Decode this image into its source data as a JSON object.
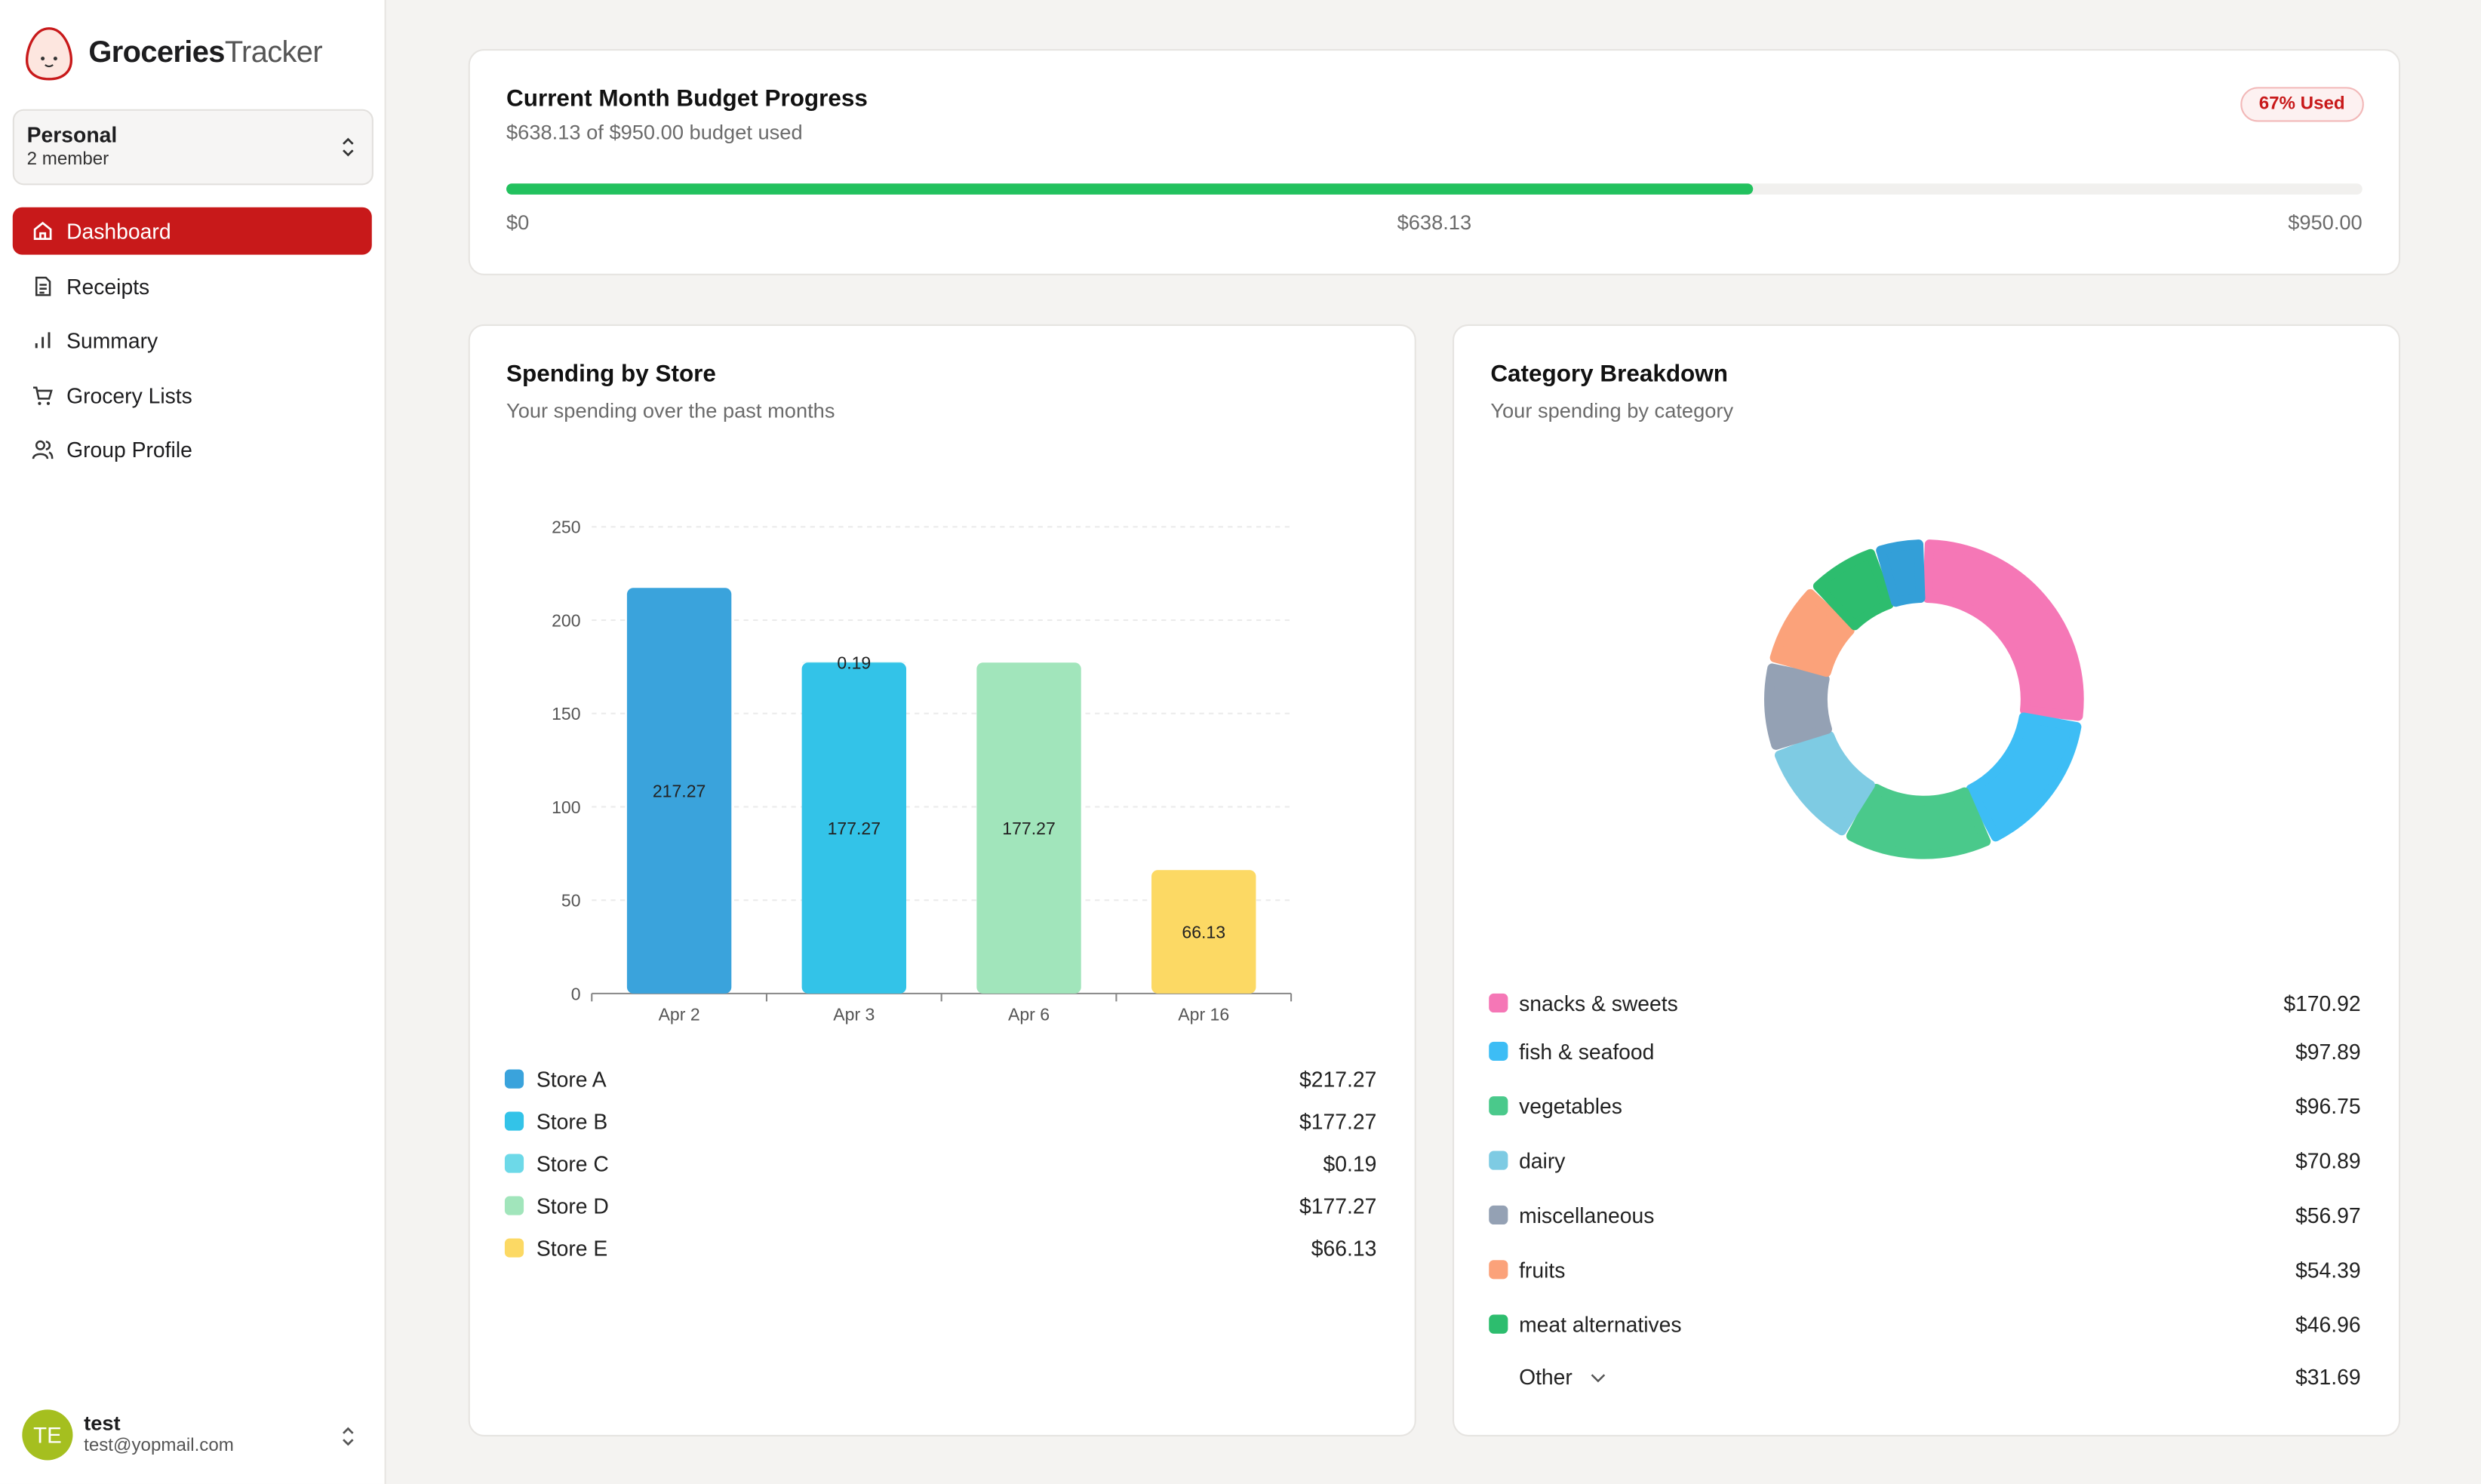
{
  "app": {
    "brand_bold": "Groceries",
    "brand_light": "Tracker"
  },
  "workspace": {
    "name": "Personal",
    "members": "2 member"
  },
  "nav": [
    "Dashboard",
    "Receipts",
    "Summary",
    "Grocery Lists",
    "Group Profile"
  ],
  "user": {
    "initials": "TE",
    "name": "test",
    "email": "test@yopmail.com"
  },
  "budget": {
    "title": "Current Month Budget Progress",
    "subtitle": "$638.13 of $950.00 budget used",
    "badge": "67% Used",
    "min": {
      "value": 0,
      "label": "$0"
    },
    "spent": {
      "value": 638.13,
      "label": "$638.13"
    },
    "limit": {
      "value": 950,
      "label": "$950.00"
    },
    "color": "#22c15e"
  },
  "spending": {
    "title": "Spending by Store",
    "subtitle": "Your spending over the past months",
    "chart_data": {
      "type": "bar",
      "stacked": true,
      "categories": [
        "Apr 2",
        "Apr 3",
        "Apr 6",
        "Apr 16"
      ],
      "ylim": [
        0,
        250
      ],
      "yticks": [
        0,
        50,
        100,
        150,
        200,
        250
      ],
      "grid": true,
      "series": [
        {
          "name": "Store A",
          "color": "#3aa3dc",
          "values": [
            217.27,
            null,
            null,
            null
          ],
          "total_label": "$217.27"
        },
        {
          "name": "Store B",
          "color": "#33c3e8",
          "values": [
            null,
            177.27,
            null,
            null
          ],
          "total_label": "$177.27"
        },
        {
          "name": "Store C",
          "color": "#6dd9e8",
          "values": [
            null,
            0.19,
            null,
            null
          ],
          "total_label": "$0.19"
        },
        {
          "name": "Store D",
          "color": "#a1e5bb",
          "values": [
            null,
            null,
            177.27,
            null
          ],
          "total_label": "$177.27"
        },
        {
          "name": "Store E",
          "color": "#fcd964",
          "values": [
            null,
            null,
            null,
            66.13
          ],
          "total_label": "$66.13"
        }
      ]
    }
  },
  "category_card": {
    "title": "Category Breakdown",
    "subtitle": "Your spending by category",
    "chart_data": {
      "type": "donut",
      "categories": [
        "snacks & sweets",
        "fish & seafood",
        "vegetables",
        "dairy",
        "miscellaneous",
        "fruits",
        "meat alternatives"
      ],
      "values": [
        170.92,
        97.89,
        96.75,
        70.89,
        56.97,
        54.39,
        46.96
      ],
      "value_labels": [
        "$170.92",
        "$97.89",
        "$96.75",
        "$70.89",
        "$56.97",
        "$54.39",
        "$46.96"
      ],
      "colors": [
        "#f577b6",
        "#3dbdf5",
        "#4ac98b",
        "#7ecbe3",
        "#94a1b4",
        "#fba27a",
        "#2dbd6e"
      ],
      "other": {
        "name": "Other",
        "value": 31.69,
        "value_label": "$31.69",
        "color": "#339fd8"
      }
    }
  }
}
